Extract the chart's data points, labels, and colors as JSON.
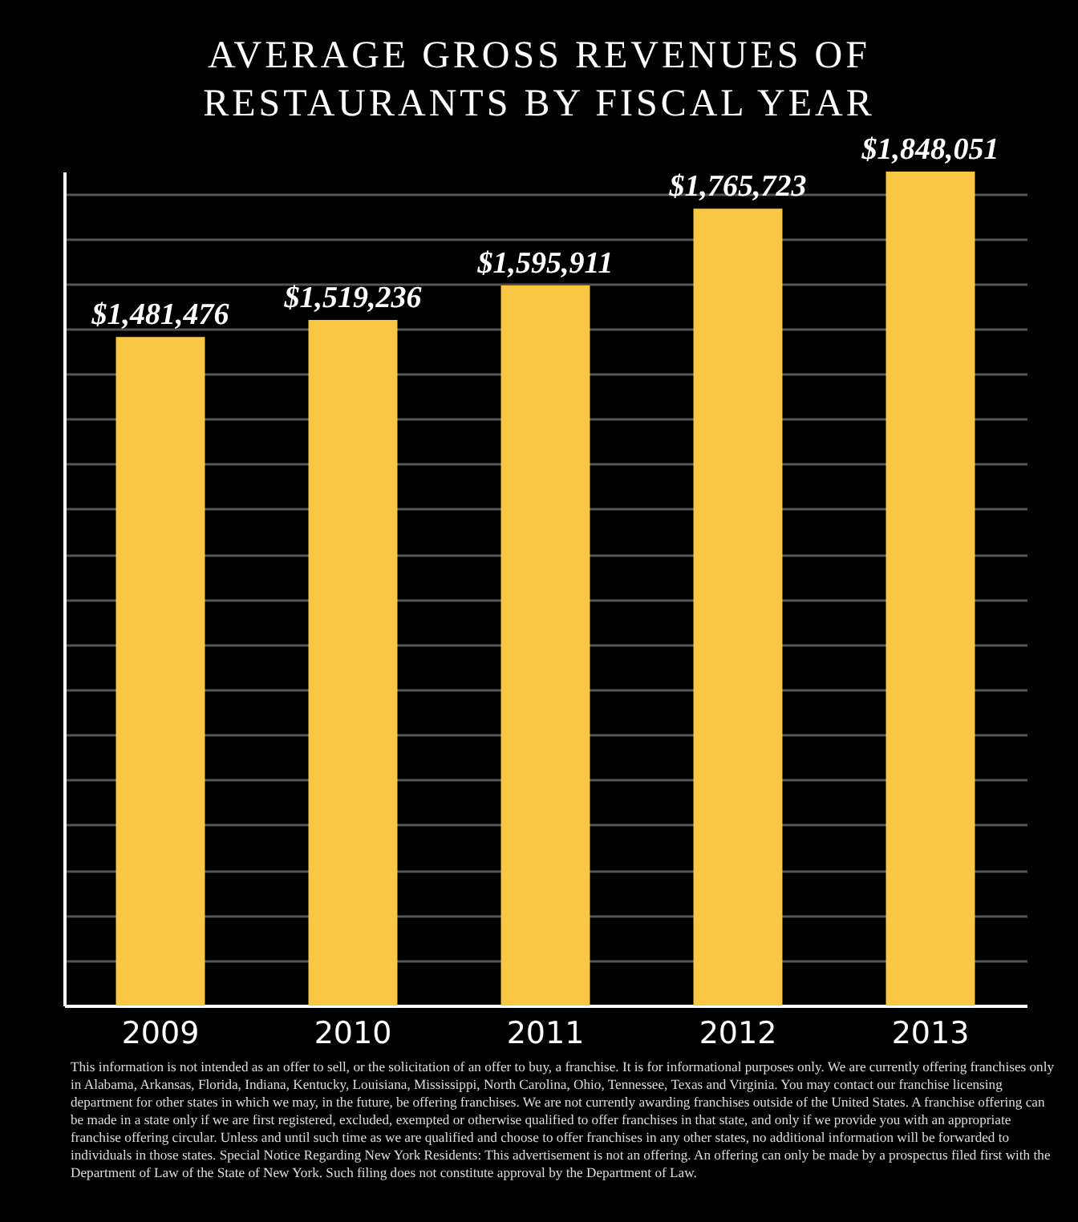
{
  "chart_data": {
    "type": "bar",
    "title": "AVERAGE GROSS REVENUES OF RESTAURANTS BY FISCAL YEAR",
    "categories": [
      "2009",
      "2010",
      "2011",
      "2012",
      "2013"
    ],
    "values": [
      1481476,
      1519236,
      1595911,
      1765723,
      1848051
    ],
    "value_labels": [
      "$1,481,476",
      "$1,519,236",
      "$1,595,911",
      "$1,765,723",
      "$1,848,051"
    ],
    "color": "#f9c743",
    "grid": "y",
    "tick_labels": "x",
    "annotations": [
      "This information is not intended as an offer to sell, or the solicitation of an offer to buy, a franchise. It is for informational purposes only. We are currently offering franchises only in Alabama, Arkansas, Florida, Indiana, Kentucky, Louisiana, Mississippi, North Carolina, Ohio, Tennessee, Texas and Virginia. You may contact our franchise licensing department for other states in which we may, in the future, be offering franchises. We are not currently awarding franchises outside of the United States. A franchise offering can be made in a state only if we are first registered, excluded, exempted or otherwise qualified to offer franchises in that state, and only if we provide you with an appropriate franchise offering circular. Unless and until such time as we are qualified and choose to offer franchises in any other states, no additional information will be forwarded to individuals in those states. Special Notice Regarding New York Residents: This advertisement is not an offering. An offering can only be made by a prospectus filed first with the Department of Law of the State of New York. Such filing does not constitute approval by the Department of Law."
    ]
  }
}
